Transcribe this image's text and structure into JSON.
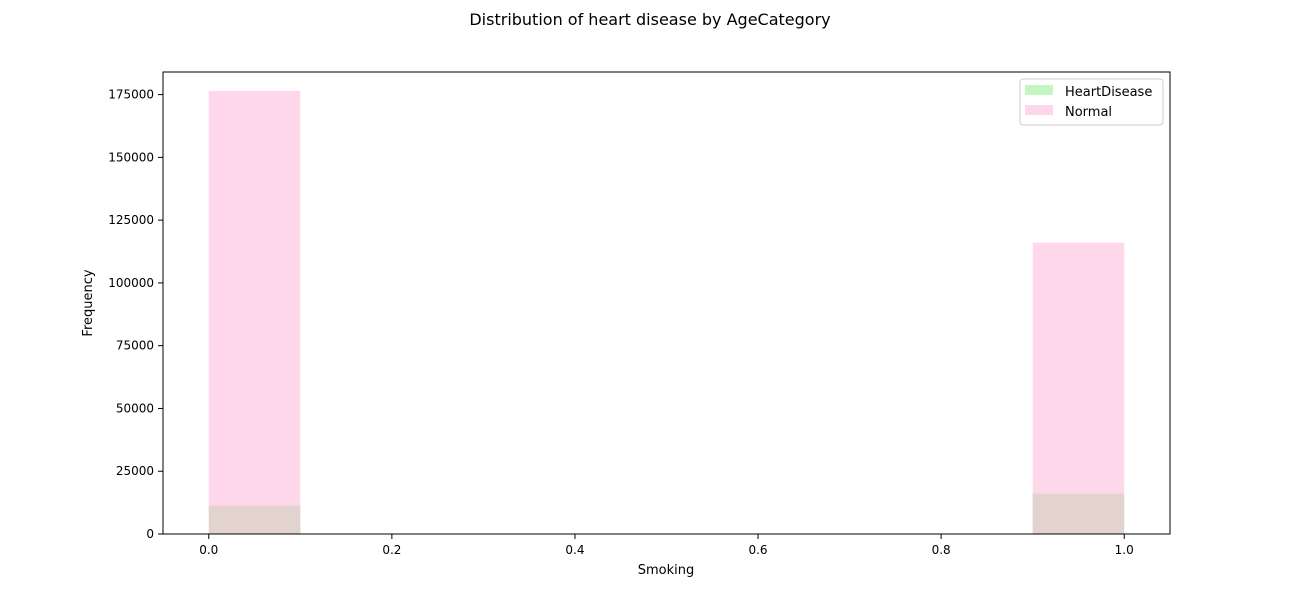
{
  "chart_data": {
    "type": "bar",
    "title": "Distribution of heart disease by AgeCategory",
    "xlabel": "Smoking",
    "ylabel": "Frequency",
    "xlim": [
      -0.05,
      1.05
    ],
    "ylim": [
      0,
      184000
    ],
    "xticks": [
      "0.0",
      "0.2",
      "0.4",
      "0.6",
      "0.8",
      "1.0"
    ],
    "yticks": [
      "0",
      "25000",
      "50000",
      "75000",
      "100000",
      "125000",
      "150000",
      "175000"
    ],
    "grid": false,
    "legend_position": "top-right",
    "bin_width": 0.1,
    "series": [
      {
        "name": "HeartDisease",
        "color": "#90ee90",
        "alpha": 0.55,
        "bins": [
          {
            "x_start": 0.0,
            "x_end": 0.1,
            "value": 11300
          },
          {
            "x_start": 0.9,
            "x_end": 1.0,
            "value": 16100
          }
        ]
      },
      {
        "name": "Normal",
        "color": "#ffb6d9",
        "alpha": 0.55,
        "bins": [
          {
            "x_start": 0.0,
            "x_end": 0.1,
            "value": 176500
          },
          {
            "x_start": 0.9,
            "x_end": 1.0,
            "value": 116000
          }
        ]
      }
    ]
  }
}
